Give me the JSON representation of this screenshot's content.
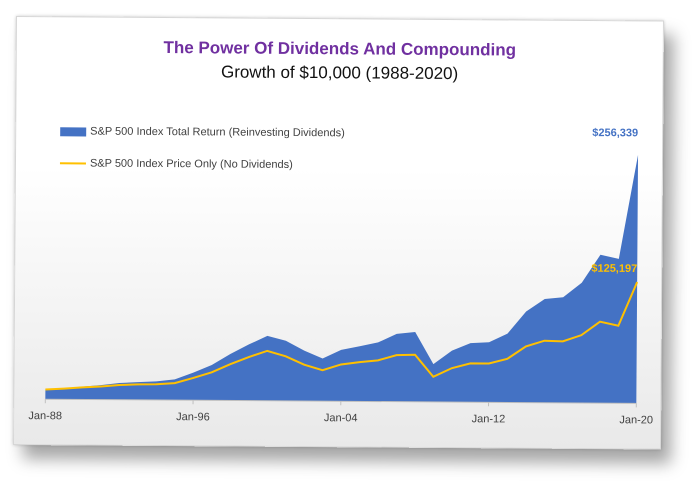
{
  "title": "The Power Of Dividends And Compounding",
  "subtitle": "Growth of $10,000 (1988-2020)",
  "colors": {
    "title": "#7030a0",
    "total_return": "#4472c4",
    "price_only": "#ffc000",
    "end_label_total": "#4472c4",
    "end_label_price": "#ffc000"
  },
  "legend": {
    "total_return": "S&P 500 Index Total Return (Reinvesting Dividends)",
    "price_only": "S&P 500 Index Price Only (No Dividends)"
  },
  "end_labels": {
    "total_return": "$256,339",
    "price_only": "$125,197"
  },
  "chart_data": {
    "type": "area",
    "title": "The Power Of Dividends And Compounding",
    "subtitle": "Growth of $10,000 (1988-2020)",
    "xlabel": "",
    "ylabel": "",
    "x_tick_labels": [
      "Jan-88",
      "Jan-96",
      "Jan-04",
      "Jan-12",
      "Jan-20"
    ],
    "ylim": [
      0,
      260000
    ],
    "grid": false,
    "legend_position": "top-left",
    "x": [
      1988,
      1989,
      1990,
      1991,
      1992,
      1993,
      1994,
      1995,
      1996,
      1997,
      1998,
      1999,
      2000,
      2001,
      2002,
      2003,
      2004,
      2005,
      2006,
      2007,
      2008,
      2009,
      2010,
      2011,
      2012,
      2013,
      2014,
      2015,
      2016,
      2017,
      2018,
      2019,
      2020
    ],
    "series": [
      {
        "name": "S&P 500 Index Total Return (Reinvesting Dividends)",
        "kind": "area",
        "values": [
          10000,
          11600,
          13200,
          15000,
          17200,
          18300,
          19200,
          21500,
          28500,
          36500,
          48000,
          58000,
          67000,
          62000,
          52000,
          44000,
          53000,
          57000,
          61000,
          70000,
          72000,
          39000,
          53000,
          61000,
          62000,
          71000,
          94000,
          107000,
          109000,
          124000,
          153000,
          149000,
          256339
        ]
      },
      {
        "name": "S&P 500 Index Price Only (No Dividends)",
        "kind": "line",
        "values": [
          10000,
          11000,
          12500,
          13500,
          15200,
          16000,
          16300,
          17500,
          23000,
          29000,
          37500,
          45000,
          51500,
          46000,
          37500,
          32000,
          38000,
          40500,
          42500,
          48000,
          48500,
          26000,
          35000,
          40000,
          40000,
          45000,
          58000,
          64000,
          63500,
          70000,
          84000,
          80000,
          125197
        ]
      }
    ]
  }
}
